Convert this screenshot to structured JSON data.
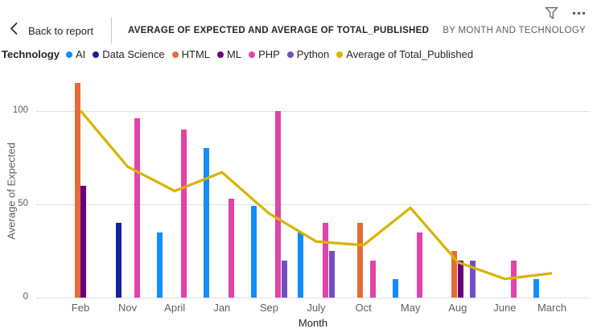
{
  "header": {
    "back_label": "Back to report",
    "title": "AVERAGE OF EXPECTED AND AVERAGE OF TOTAL_PUBLISHED",
    "subtitle": "BY MONTH AND TECHNOLOGY",
    "icons": [
      "filter-funnel-icon",
      "more-options-icon"
    ]
  },
  "legend": {
    "title": "Technology",
    "items": [
      {
        "label": "AI",
        "color": "#118DFF"
      },
      {
        "label": "Data Science",
        "color": "#12239E"
      },
      {
        "label": "HTML",
        "color": "#E66C37"
      },
      {
        "label": "ML",
        "color": "#6B007B"
      },
      {
        "label": "PHP",
        "color": "#E044A7"
      },
      {
        "label": "Python",
        "color": "#744EC2"
      },
      {
        "label": "Average of Total_Published",
        "color": "#D9B300"
      }
    ]
  },
  "chart_data": {
    "type": "bar",
    "title": "Average of Expected and Average of Total_Published by Month and Technology",
    "xlabel": "Month",
    "ylabel": "Average of Expected",
    "yticks": [
      0,
      50,
      100
    ],
    "ylim": [
      0,
      120
    ],
    "grid": "dotted horizontal",
    "legend_position": "top",
    "categories": [
      "Feb",
      "Nov",
      "April",
      "Jan",
      "Sep",
      "July",
      "Oct",
      "May",
      "Aug",
      "June",
      "March"
    ],
    "series": [
      {
        "name": "AI",
        "type": "bar",
        "color": "#118DFF",
        "values": [
          null,
          null,
          35,
          80,
          49,
          35,
          null,
          10,
          null,
          null,
          10
        ]
      },
      {
        "name": "Data Science",
        "type": "bar",
        "color": "#12239E",
        "values": [
          null,
          40,
          null,
          null,
          null,
          null,
          null,
          null,
          null,
          null,
          null
        ]
      },
      {
        "name": "HTML",
        "type": "bar",
        "color": "#E66C37",
        "values": [
          115,
          null,
          null,
          null,
          null,
          null,
          40,
          null,
          25,
          null,
          null
        ]
      },
      {
        "name": "ML",
        "type": "bar",
        "color": "#6B007B",
        "values": [
          60,
          null,
          null,
          null,
          null,
          null,
          null,
          null,
          20,
          null,
          null
        ]
      },
      {
        "name": "PHP",
        "type": "bar",
        "color": "#E044A7",
        "values": [
          null,
          96,
          90,
          53,
          100,
          40,
          20,
          35,
          null,
          20,
          null
        ]
      },
      {
        "name": "Python",
        "type": "bar",
        "color": "#744EC2",
        "values": [
          null,
          null,
          null,
          null,
          20,
          25,
          null,
          null,
          20,
          null,
          null
        ]
      },
      {
        "name": "Average of Total_Published",
        "type": "line",
        "color": "#D9B300",
        "values": [
          100,
          70,
          57,
          67,
          45,
          30,
          28,
          48,
          19,
          10,
          13
        ]
      }
    ]
  }
}
